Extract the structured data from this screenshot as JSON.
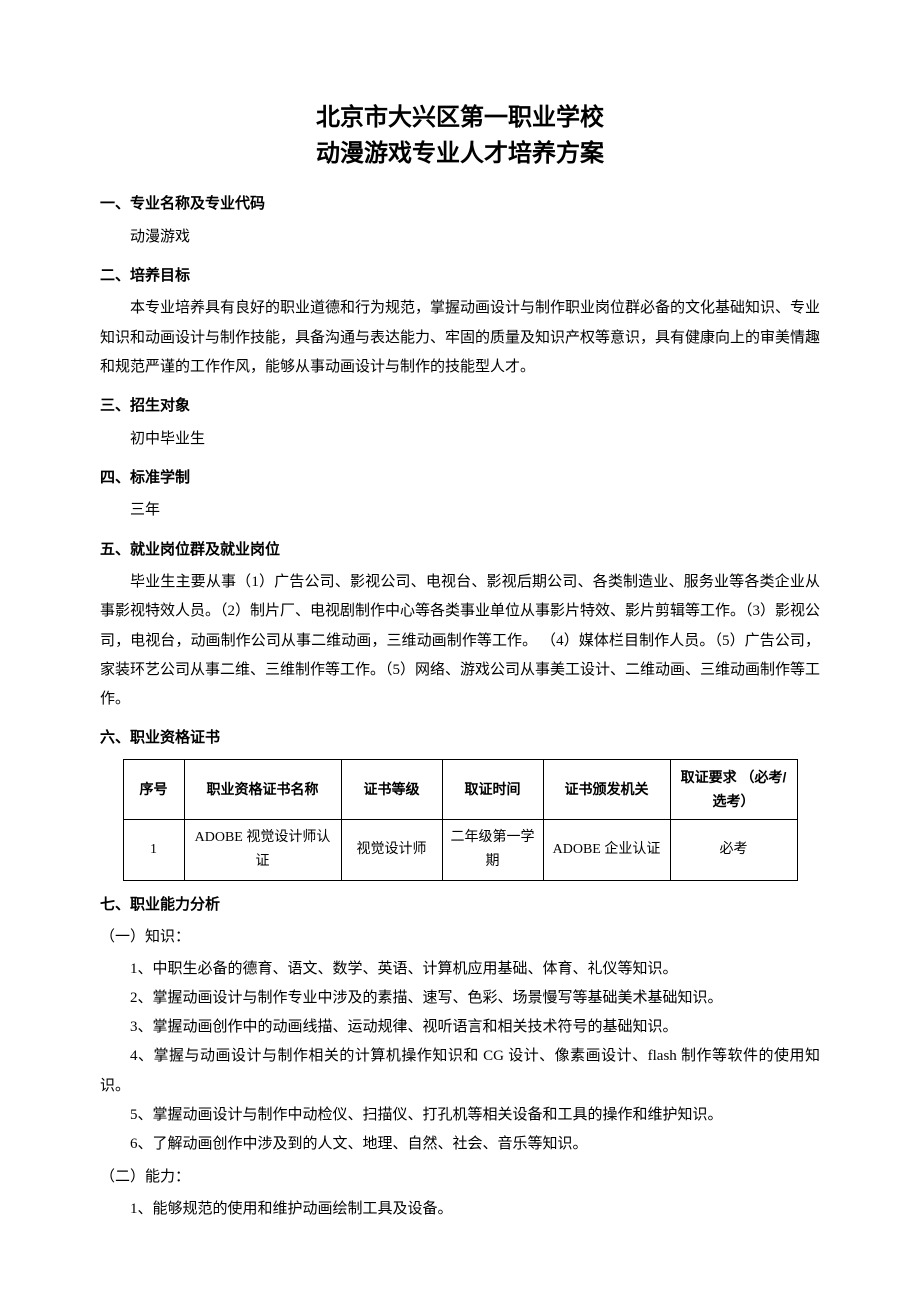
{
  "title_line1": "北京市大兴区第一职业学校",
  "title_line2": "动漫游戏专业人才培养方案",
  "s1_head": "一、专业名称及专业代码",
  "s1_body": "动漫游戏",
  "s2_head": "二、培养目标",
  "s2_body": "本专业培养具有良好的职业道德和行为规范，掌握动画设计与制作职业岗位群必备的文化基础知识、专业知识和动画设计与制作技能，具备沟通与表达能力、牢固的质量及知识产权等意识，具有健康向上的审美情趣和规范严谨的工作作风，能够从事动画设计与制作的技能型人才。",
  "s3_head": "三、招生对象",
  "s3_body": "初中毕业生",
  "s4_head": "四、标准学制",
  "s4_body": "三年",
  "s5_head": "五、就业岗位群及就业岗位",
  "s5_body": "毕业生主要从事（1）广告公司、影视公司、电视台、影视后期公司、各类制造业、服务业等各类企业从事影视特效人员。（2）制片厂、电视剧制作中心等各类事业单位从事影片特效、影片剪辑等工作。（3）影视公司，电视台，动画制作公司从事二维动画，三维动画制作等工作。 （4）媒体栏目制作人员。（5）广告公司，家装环艺公司从事二维、三维制作等工作。（5）网络、游戏公司从事美工设计、二维动画、三维动画制作等工作。",
  "s6_head": "六、职业资格证书",
  "cert_table": {
    "columns": {
      "seq": "序号",
      "name": "职业资格证书名称",
      "level": "证书等级",
      "time": "取证时间",
      "org": "证书颁发机关",
      "req": "取证要求\n（必考/选考）"
    },
    "rows": [
      {
        "seq": "1",
        "name": "ADOBE 视觉设计师认证",
        "level": "视觉设计师",
        "time": "二年级第一学期",
        "org": "ADOBE 企业认证",
        "req": "必考"
      }
    ]
  },
  "s7_head": "七、职业能力分析",
  "s7_a_head": "（一）知识：",
  "s7_a_items": [
    "1、中职生必备的德育、语文、数学、英语、计算机应用基础、体育、礼仪等知识。",
    "2、掌握动画设计与制作专业中涉及的素描、速写、色彩、场景慢写等基础美术基础知识。",
    "3、掌握动画创作中的动画线描、运动规律、视听语言和相关技术符号的基础知识。",
    "4、掌握与动画设计与制作相关的计算机操作知识和 CG 设计、像素画设计、flash 制作等软件的使用知识。",
    "5、掌握动画设计与制作中动检仪、扫描仪、打孔机等相关设备和工具的操作和维护知识。",
    "6、了解动画创作中涉及到的人文、地理、自然、社会、音乐等知识。"
  ],
  "s7_b_head": "（二）能力：",
  "s7_b_items": [
    "1、能够规范的使用和维护动画绘制工具及设备。"
  ]
}
